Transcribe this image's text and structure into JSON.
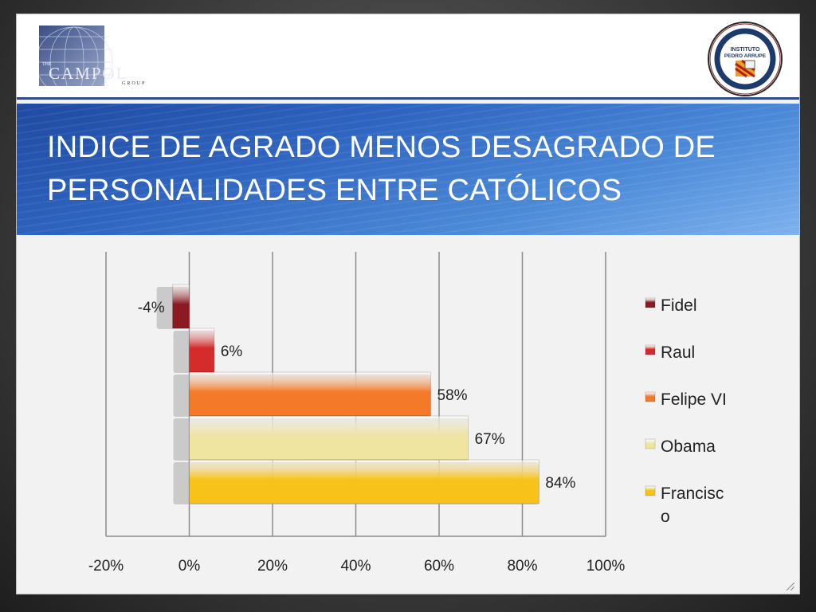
{
  "slide": {
    "title_line1": "INDICE DE AGRADO MENOS DESAGRADO DE",
    "title_line2": "PERSONALIDADES ENTRE CATÓLICOS"
  },
  "logos": {
    "left": {
      "line1": "THE",
      "line2": "CAMPOL",
      "line3": "GROUP"
    },
    "right": {
      "line1": "INSTITUTO",
      "line2": "PEDRO ARRUPE"
    }
  },
  "colors": {
    "fidel": "#8b1a22",
    "raul": "#d42b2b",
    "felipe": "#f47a2a",
    "obama": "#efe4a0",
    "francisco": "#f7c21a",
    "title_band": "#2e64c0"
  },
  "chart_data": {
    "type": "bar",
    "orientation": "horizontal",
    "xlim": [
      -0.2,
      1.0
    ],
    "xticks": [
      "-20%",
      "0%",
      "20%",
      "40%",
      "60%",
      "80%",
      "100%"
    ],
    "grid": "vertical",
    "legend_position": "right",
    "series": [
      {
        "name": "Fidel",
        "value": -0.04,
        "label": "-4%"
      },
      {
        "name": "Raul",
        "value": 0.06,
        "label": "6%"
      },
      {
        "name": "Felipe VI",
        "value": 0.58,
        "label": "58%"
      },
      {
        "name": "Obama",
        "value": 0.67,
        "label": "67%"
      },
      {
        "name": "Francisco",
        "value": 0.84,
        "label": "84%"
      }
    ],
    "legend": [
      {
        "lines": [
          "Fidel"
        ]
      },
      {
        "lines": [
          "Raul"
        ]
      },
      {
        "lines": [
          "Felipe VI"
        ]
      },
      {
        "lines": [
          "Obama"
        ]
      },
      {
        "lines": [
          "Francisc",
          "o"
        ]
      }
    ]
  }
}
